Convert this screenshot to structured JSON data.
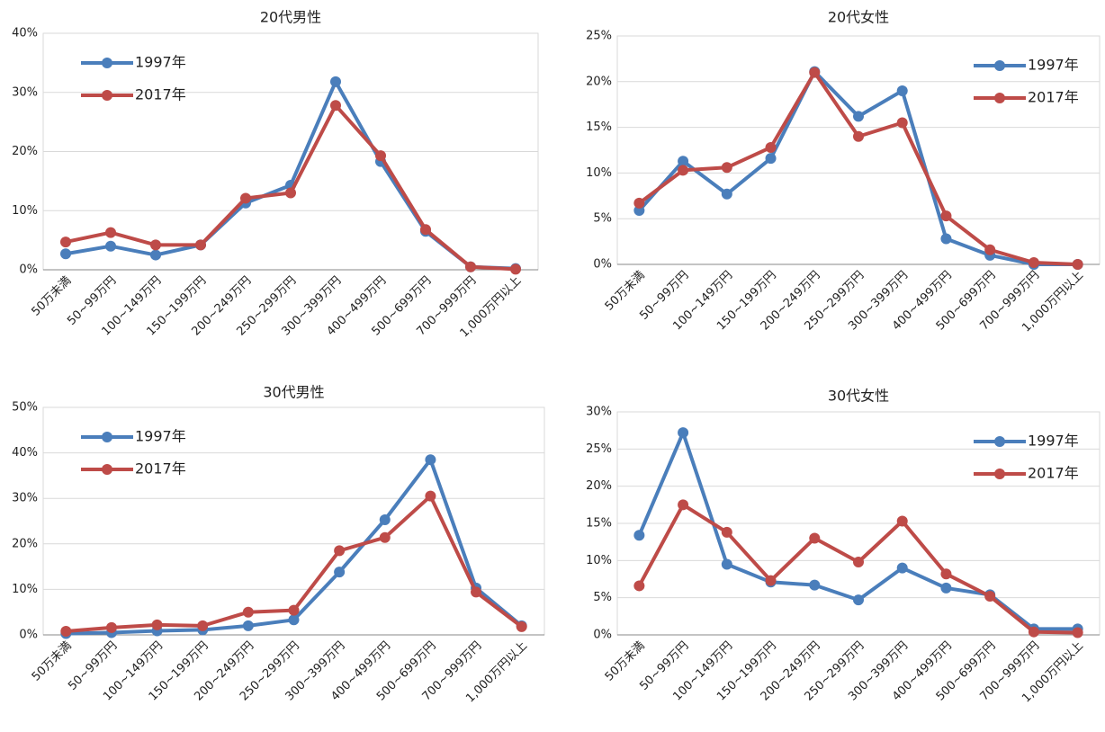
{
  "chart_data": [
    {
      "type": "line",
      "title": "20代男性",
      "categories": [
        "50万未満",
        "50~99万円",
        "100~149万円",
        "150~199万円",
        "200~249万円",
        "250~299万円",
        "300~399万円",
        "400~499万円",
        "500~699万円",
        "700~999万円",
        "1,000万円以上"
      ],
      "series": [
        {
          "name": "1997年",
          "color": "#4a7ebb",
          "values": [
            2.7,
            4.0,
            2.5,
            4.2,
            11.3,
            14.3,
            31.8,
            18.3,
            6.5,
            0.5,
            0.2
          ]
        },
        {
          "name": "2017年",
          "color": "#be4b48",
          "values": [
            4.7,
            6.3,
            4.2,
            4.2,
            12.1,
            13.0,
            27.8,
            19.3,
            6.8,
            0.5,
            0.1
          ]
        }
      ],
      "ylim": [
        0,
        40
      ],
      "yticks": [
        {
          "value": 0,
          "label": "0%"
        },
        {
          "value": 10,
          "label": "10%"
        },
        {
          "value": 20,
          "label": "20%"
        },
        {
          "value": 30,
          "label": "30%"
        },
        {
          "value": 40,
          "label": "40%"
        }
      ],
      "grid": true,
      "legend": "upper left"
    },
    {
      "type": "line",
      "title": "20代女性",
      "categories": [
        "50万未満",
        "50~99万円",
        "100~149万円",
        "150~199万円",
        "200~249万円",
        "250~299万円",
        "300~399万円",
        "400~499万円",
        "500~699万円",
        "700~999万円",
        "1,000万円以上"
      ],
      "series": [
        {
          "name": "1997年",
          "color": "#4a7ebb",
          "values": [
            5.9,
            11.3,
            7.7,
            11.6,
            21.1,
            16.2,
            19.0,
            2.8,
            1.0,
            0.0,
            0.0
          ]
        },
        {
          "name": "2017年",
          "color": "#be4b48",
          "values": [
            6.7,
            10.3,
            10.6,
            12.8,
            21.0,
            14.0,
            15.5,
            5.3,
            1.6,
            0.2,
            0.0
          ]
        }
      ],
      "ylim": [
        0,
        25
      ],
      "yticks": [
        {
          "value": 0,
          "label": "0%"
        },
        {
          "value": 5,
          "label": "5%"
        },
        {
          "value": 10,
          "label": "10%"
        },
        {
          "value": 15,
          "label": "15%"
        },
        {
          "value": 20,
          "label": "20%"
        },
        {
          "value": 25,
          "label": "25%"
        }
      ],
      "grid": true,
      "legend": "upper right"
    },
    {
      "type": "line",
      "title": "30代男性",
      "categories": [
        "50万未満",
        "50~99万円",
        "100~149万円",
        "150~199万円",
        "200~249万円",
        "250~299万円",
        "300~399万円",
        "400~499万円",
        "500~699万円",
        "700~999万円",
        "1,000万円以上"
      ],
      "series": [
        {
          "name": "1997年",
          "color": "#4a7ebb",
          "values": [
            0.3,
            0.5,
            0.9,
            1.1,
            2.0,
            3.3,
            13.8,
            25.3,
            38.5,
            10.3,
            2.0
          ]
        },
        {
          "name": "2017年",
          "color": "#be4b48",
          "values": [
            0.8,
            1.6,
            2.2,
            2.0,
            5.0,
            5.4,
            18.5,
            21.4,
            30.5,
            9.4,
            1.8
          ]
        }
      ],
      "ylim": [
        0,
        50
      ],
      "yticks": [
        {
          "value": 0,
          "label": "0%"
        },
        {
          "value": 10,
          "label": "10%"
        },
        {
          "value": 20,
          "label": "20%"
        },
        {
          "value": 30,
          "label": "30%"
        },
        {
          "value": 40,
          "label": "40%"
        },
        {
          "value": 50,
          "label": "50%"
        }
      ],
      "grid": true,
      "legend": "upper left"
    },
    {
      "type": "line",
      "title": "30代女性",
      "categories": [
        "50万未満",
        "50~99万円",
        "100~149万円",
        "150~199万円",
        "200~249万円",
        "250~299万円",
        "300~399万円",
        "400~499万円",
        "500~699万円",
        "700~999万円",
        "1,000万円以上"
      ],
      "series": [
        {
          "name": "1997年",
          "color": "#4a7ebb",
          "values": [
            13.4,
            27.2,
            9.5,
            7.1,
            6.7,
            4.7,
            9.0,
            6.3,
            5.4,
            0.8,
            0.8
          ]
        },
        {
          "name": "2017年",
          "color": "#be4b48",
          "values": [
            6.6,
            17.5,
            13.8,
            7.3,
            13.0,
            9.8,
            15.3,
            8.2,
            5.2,
            0.4,
            0.3
          ]
        }
      ],
      "ylim": [
        0,
        30
      ],
      "yticks": [
        {
          "value": 0,
          "label": "0%"
        },
        {
          "value": 5,
          "label": "5%"
        },
        {
          "value": 10,
          "label": "10%"
        },
        {
          "value": 15,
          "label": "15%"
        },
        {
          "value": 20,
          "label": "20%"
        },
        {
          "value": 25,
          "label": "25%"
        },
        {
          "value": 30,
          "label": "30%"
        }
      ],
      "grid": true,
      "legend": "upper right"
    }
  ]
}
